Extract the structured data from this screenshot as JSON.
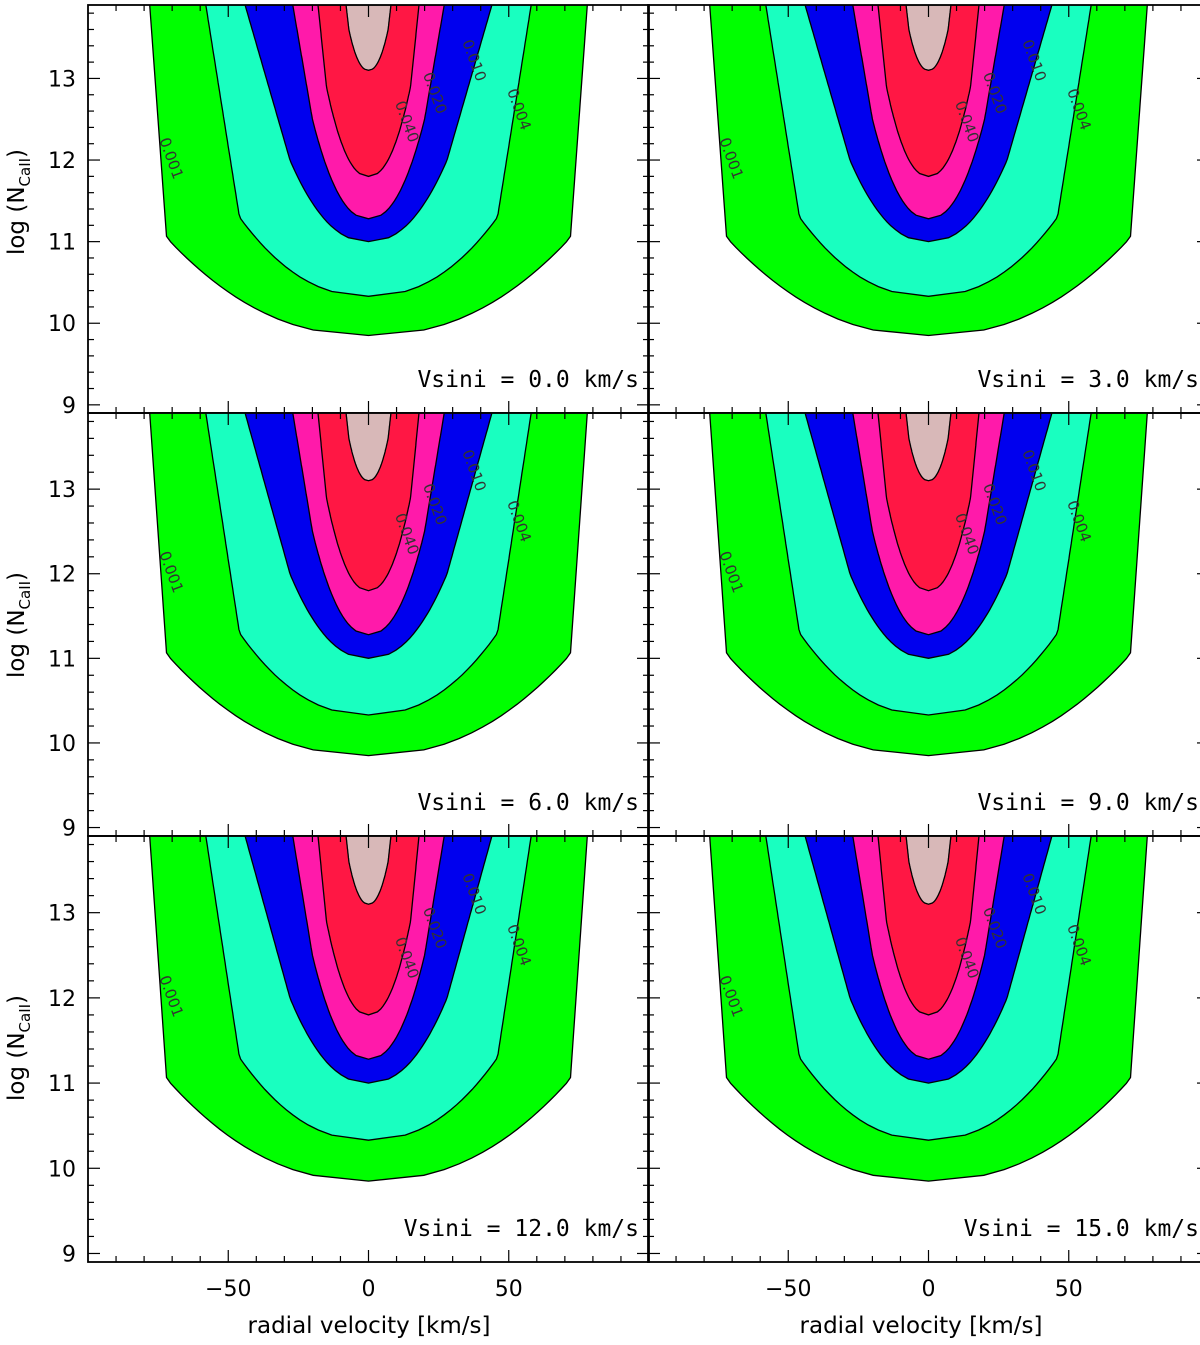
{
  "chart_data": {
    "type": "contour",
    "layout": "3 rows x 2 columns, shared axes",
    "xlabel": "radial velocity [km/s]",
    "ylabel_main": "log (N",
    "ylabel_sub": "CaII",
    "ylabel_end": ")",
    "xlim": [
      -100,
      100
    ],
    "ylim": [
      8.9,
      13.9
    ],
    "xticks": [
      -50,
      0,
      50
    ],
    "xtick_labels": [
      "−50",
      "0",
      "50"
    ],
    "yticks": [
      9,
      10,
      11,
      12,
      13
    ],
    "ytick_labels": [
      "9",
      "10",
      "11",
      "12",
      "13"
    ],
    "grid": false,
    "legend": "none",
    "contour_levels": [
      {
        "label": "0.001",
        "color": "#00ff00"
      },
      {
        "label": "0.004",
        "color": "#19ffc0"
      },
      {
        "label": "0.010",
        "color": "#0000ee"
      },
      {
        "label": "0.020",
        "color": "#ff1aaa"
      },
      {
        "label": "0.040",
        "color": "#ff1744"
      },
      {
        "label": "",
        "color": "#d8b8b8"
      }
    ],
    "panels": [
      {
        "label": "Vsini = 0.0 km/s",
        "vsini": 0.0
      },
      {
        "label": "Vsini = 3.0 km/s",
        "vsini": 3.0
      },
      {
        "label": "Vsini = 6.0 km/s",
        "vsini": 6.0
      },
      {
        "label": "Vsini = 9.0 km/s",
        "vsini": 9.0
      },
      {
        "label": "Vsini = 12.0 km/s",
        "vsini": 12.0
      },
      {
        "label": "Vsini = 15.0 km/s",
        "vsini": 15.0
      }
    ],
    "contour_shapes": [
      {
        "level": "0.001",
        "bottom": 9.85,
        "width_top": 78,
        "shoulder_y": 11.05,
        "shoulder_w": 72
      },
      {
        "level": "0.004",
        "bottom": 10.33,
        "width_top": 58,
        "shoulder_y": 11.3,
        "shoulder_w": 46
      },
      {
        "level": "0.010",
        "bottom": 11.0,
        "width_top": 44,
        "shoulder_y": 12.0,
        "shoulder_w": 28
      },
      {
        "level": "0.020",
        "bottom": 11.28,
        "width_top": 27,
        "shoulder_y": 12.5,
        "shoulder_w": 20
      },
      {
        "level": "0.040",
        "bottom": 11.8,
        "width_top": 18,
        "shoulder_y": 12.9,
        "shoulder_w": 15
      },
      {
        "level": "",
        "bottom": 13.1,
        "width_top": 8,
        "shoulder_y": 13.6,
        "shoulder_w": 7
      }
    ]
  }
}
